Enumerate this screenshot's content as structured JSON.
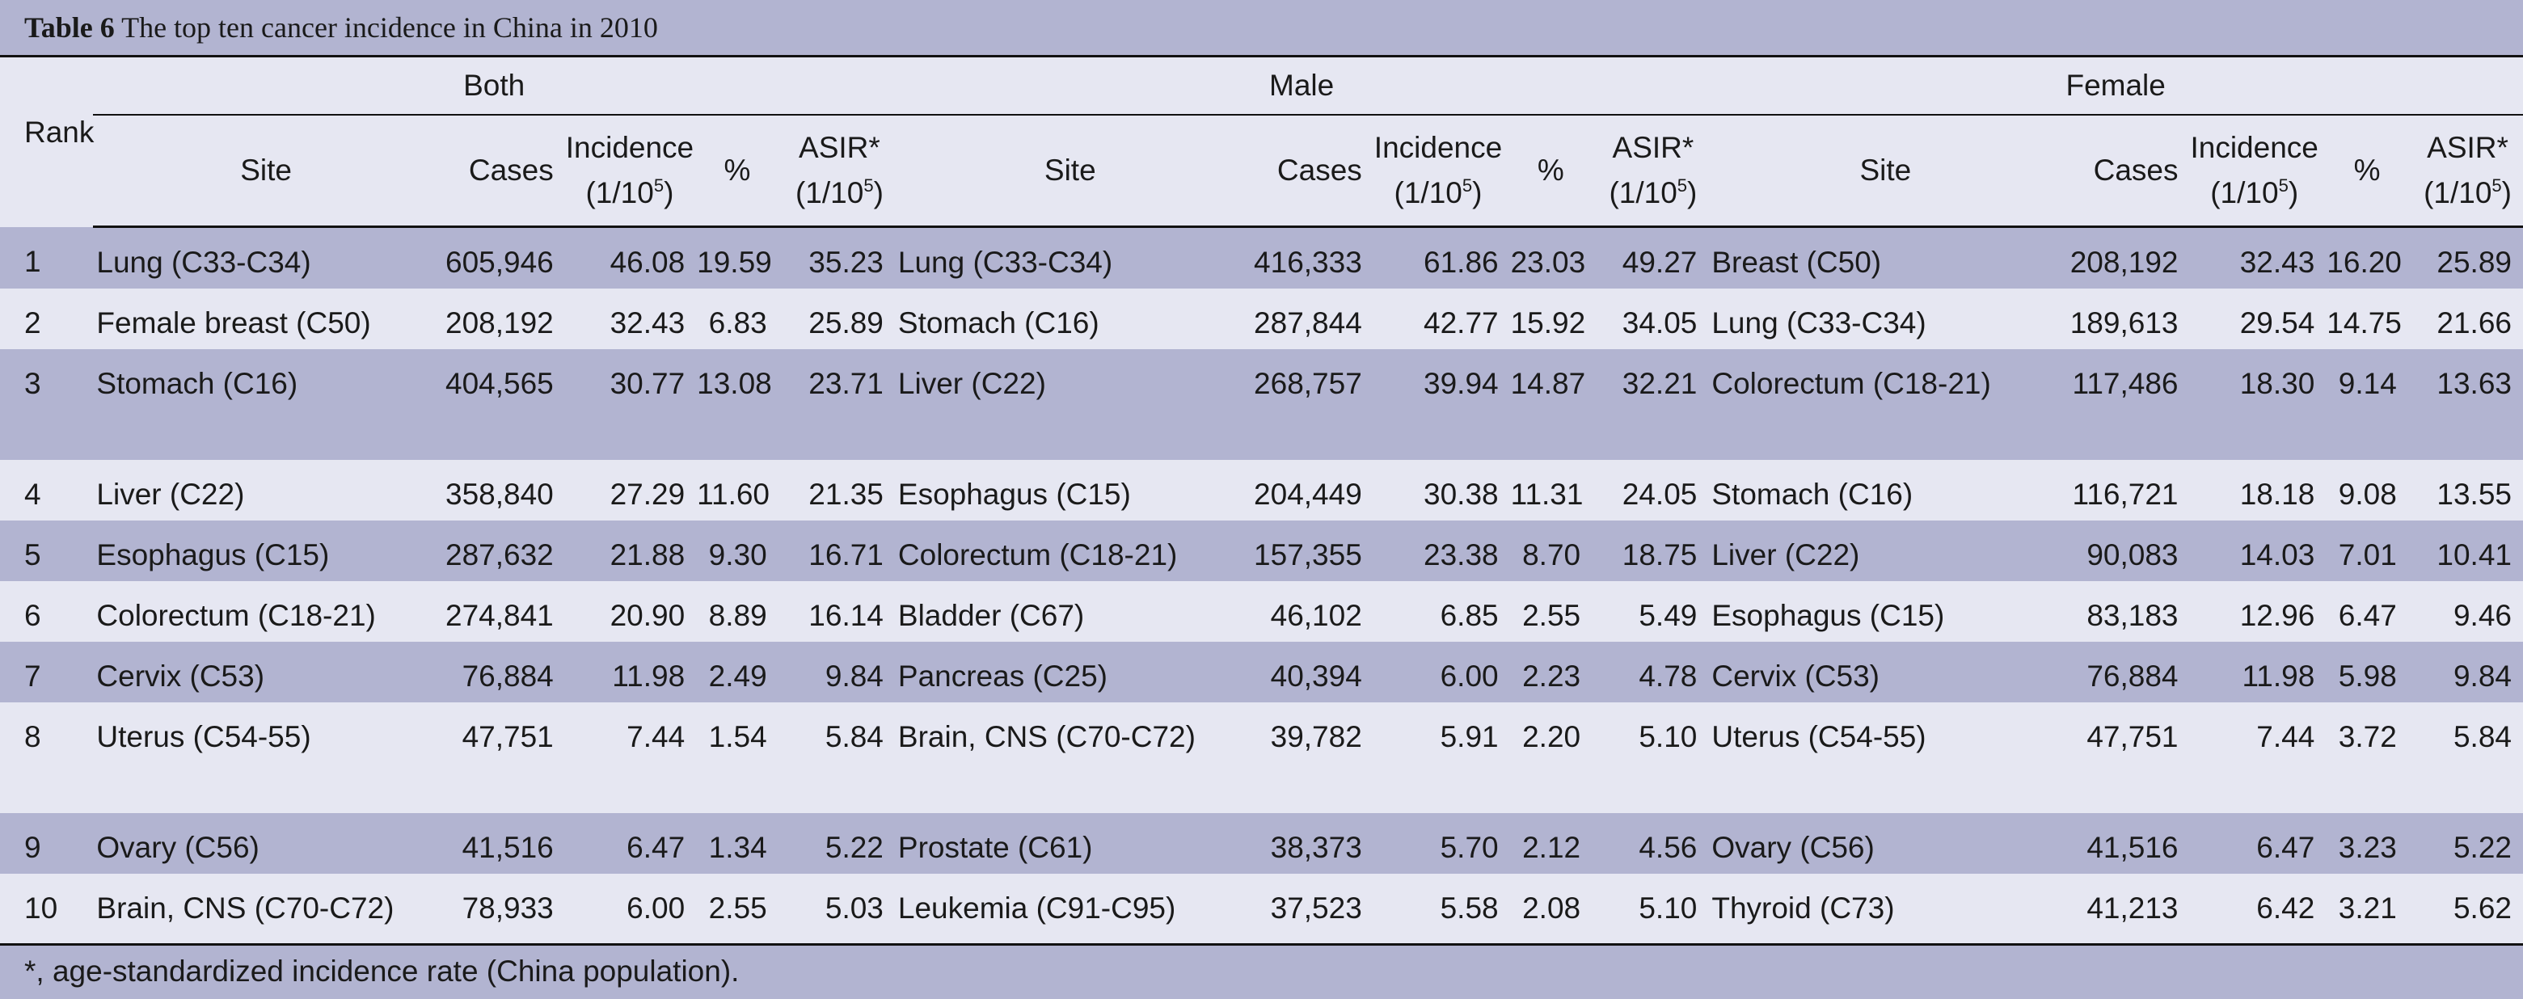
{
  "caption": {
    "label": "Table 6",
    "title": "The top ten cancer incidence in China in 2010"
  },
  "headers": {
    "rank": "Rank",
    "groups": [
      "Both",
      "Male",
      "Female"
    ],
    "site": "Site",
    "cases": "Cases",
    "incidence": "Incidence",
    "pct": "%",
    "asir": "ASIR*",
    "unit_prefix": "(1/10",
    "unit_exp": "5",
    "unit_suffix": ")"
  },
  "rows": [
    {
      "rank": "1",
      "both": [
        "Lung (C33-C34)",
        "605,946",
        "46.08",
        "19.59",
        "35.23"
      ],
      "male": [
        "Lung (C33-C34)",
        "416,333",
        "61.86",
        "23.03",
        "49.27"
      ],
      "female": [
        "Breast (C50)",
        "208,192",
        "32.43",
        "16.20",
        "25.89"
      ]
    },
    {
      "rank": "2",
      "both": [
        "Female breast (C50)",
        "208,192",
        "32.43",
        "6.83",
        "25.89"
      ],
      "male": [
        "Stomach (C16)",
        "287,844",
        "42.77",
        "15.92",
        "34.05"
      ],
      "female": [
        "Lung (C33-C34)",
        "189,613",
        "29.54",
        "14.75",
        "21.66"
      ]
    },
    {
      "rank": "3",
      "both": [
        "Stomach (C16)",
        "404,565",
        "30.77",
        "13.08",
        "23.71"
      ],
      "male": [
        "Liver (C22)",
        "268,757",
        "39.94",
        "14.87",
        "32.21"
      ],
      "female": [
        "Colorectum (C18-21)",
        "117,486",
        "18.30",
        "9.14",
        "13.63"
      ]
    },
    {
      "rank": "4",
      "both": [
        "Liver (C22)",
        "358,840",
        "27.29",
        "11.60",
        "21.35"
      ],
      "male": [
        "Esophagus (C15)",
        "204,449",
        "30.38",
        "11.31",
        "24.05"
      ],
      "female": [
        "Stomach (C16)",
        "116,721",
        "18.18",
        "9.08",
        "13.55"
      ]
    },
    {
      "rank": "5",
      "both": [
        "Esophagus (C15)",
        "287,632",
        "21.88",
        "9.30",
        "16.71"
      ],
      "male": [
        "Colorectum (C18-21)",
        "157,355",
        "23.38",
        "8.70",
        "18.75"
      ],
      "female": [
        "Liver (C22)",
        "90,083",
        "14.03",
        "7.01",
        "10.41"
      ]
    },
    {
      "rank": "6",
      "both": [
        "Colorectum (C18-21)",
        "274,841",
        "20.90",
        "8.89",
        "16.14"
      ],
      "male": [
        "Bladder (C67)",
        "46,102",
        "6.85",
        "2.55",
        "5.49"
      ],
      "female": [
        "Esophagus (C15)",
        "83,183",
        "12.96",
        "6.47",
        "9.46"
      ]
    },
    {
      "rank": "7",
      "both": [
        "Cervix (C53)",
        "76,884",
        "11.98",
        "2.49",
        "9.84"
      ],
      "male": [
        "Pancreas (C25)",
        "40,394",
        "6.00",
        "2.23",
        "4.78"
      ],
      "female": [
        "Cervix (C53)",
        "76,884",
        "11.98",
        "5.98",
        "9.84"
      ]
    },
    {
      "rank": "8",
      "both": [
        "Uterus (C54-55)",
        "47,751",
        "7.44",
        "1.54",
        "5.84"
      ],
      "male": [
        "Brain, CNS (C70-C72)",
        "39,782",
        "5.91",
        "2.20",
        "5.10"
      ],
      "female": [
        "Uterus (C54-55)",
        "47,751",
        "7.44",
        "3.72",
        "5.84"
      ]
    },
    {
      "rank": "9",
      "both": [
        "Ovary (C56)",
        "41,516",
        "6.47",
        "1.34",
        "5.22"
      ],
      "male": [
        "Prostate (C61)",
        "38,373",
        "5.70",
        "2.12",
        "4.56"
      ],
      "female": [
        "Ovary (C56)",
        "41,516",
        "6.47",
        "3.23",
        "5.22"
      ]
    },
    {
      "rank": "10",
      "both": [
        "Brain, CNS (C70-C72)",
        "78,933",
        "6.00",
        "2.55",
        "5.03"
      ],
      "male": [
        "Leukemia (C91-C95)",
        "37,523",
        "5.58",
        "2.08",
        "5.10"
      ],
      "female": [
        "Thyroid (C73)",
        "41,213",
        "6.42",
        "3.21",
        "5.62"
      ]
    }
  ],
  "footnote": "*, age-standardized incidence rate (China population).",
  "colors": {
    "band_dark": "#b2b4d1",
    "band_light": "#e6e7f2",
    "rule": "#111111"
  }
}
